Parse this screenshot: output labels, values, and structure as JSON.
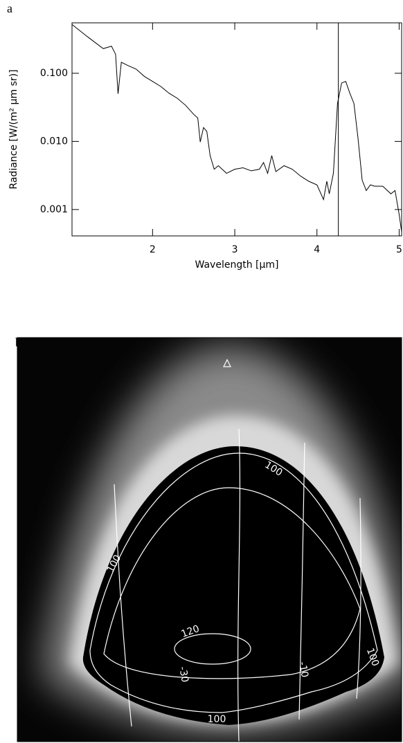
{
  "chart_data": [
    {
      "type": "line",
      "panel": "a",
      "xlabel": "Wavelength [μm]",
      "ylabel": "Radiance [W/(m² μm sr)]",
      "log_y": true,
      "color": "#000000",
      "x": [
        1.02,
        1.2,
        1.4,
        1.5,
        1.55,
        1.58,
        1.62,
        1.7,
        1.8,
        1.9,
        2.0,
        2.1,
        2.2,
        2.3,
        2.4,
        2.5,
        2.55,
        2.58,
        2.62,
        2.66,
        2.7,
        2.75,
        2.8,
        2.9,
        3.0,
        3.1,
        3.2,
        3.3,
        3.35,
        3.4,
        3.45,
        3.5,
        3.6,
        3.7,
        3.8,
        3.9,
        4.0,
        4.08,
        4.12,
        4.15,
        4.2,
        4.25,
        4.3,
        4.35,
        4.4,
        4.45,
        4.5,
        4.55,
        4.6,
        4.65,
        4.7,
        4.8,
        4.9,
        4.95,
        5.0,
        5.03
      ],
      "values": [
        0.52,
        0.35,
        0.23,
        0.25,
        0.19,
        0.05,
        0.145,
        0.13,
        0.115,
        0.09,
        0.076,
        0.064,
        0.051,
        0.043,
        0.034,
        0.025,
        0.022,
        0.0098,
        0.016,
        0.014,
        0.0062,
        0.0039,
        0.0044,
        0.0034,
        0.0039,
        0.0041,
        0.0037,
        0.0039,
        0.0049,
        0.0034,
        0.0062,
        0.0036,
        0.0044,
        0.0039,
        0.0031,
        0.0026,
        0.0023,
        0.0014,
        0.0026,
        0.0017,
        0.0034,
        0.036,
        0.072,
        0.076,
        0.051,
        0.036,
        0.011,
        0.0027,
        0.0019,
        0.0023,
        0.0022,
        0.0022,
        0.0017,
        0.0019,
        0.00085,
        0.00047
      ],
      "vlines": [
        4.26
      ],
      "xlim": [
        1.02,
        5.03
      ],
      "xticks": [
        2,
        3,
        4,
        5
      ],
      "ylim": [
        0.00041,
        0.55
      ],
      "yticks": [
        {
          "value": 0.1,
          "label": "0.100"
        },
        {
          "value": 0.01,
          "label": "0.010"
        },
        {
          "value": 0.001,
          "label": "0.001"
        }
      ]
    },
    {
      "type": "image",
      "panel": "b",
      "contour_labels": [
        "100",
        "100",
        "120",
        "100",
        "-30",
        "-10",
        "100"
      ]
    }
  ]
}
